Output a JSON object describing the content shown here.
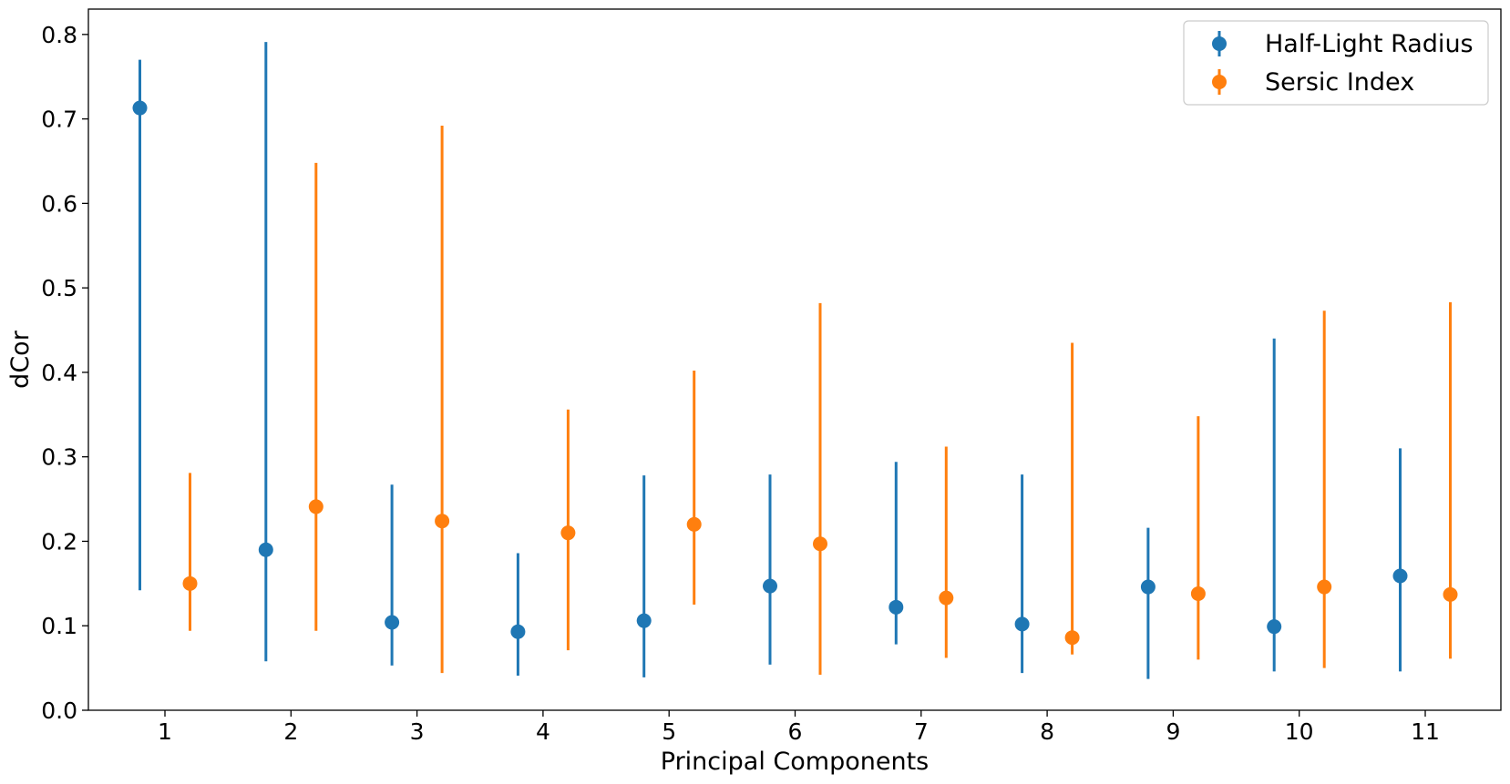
{
  "chart_data": {
    "type": "scatter",
    "title": "",
    "xlabel": "Principal Components",
    "ylabel": "dCor",
    "categories": [
      "1",
      "2",
      "3",
      "4",
      "5",
      "6",
      "7",
      "8",
      "9",
      "10",
      "11"
    ],
    "ylim": [
      0,
      0.83
    ],
    "yticks": [
      "0.0",
      "0.1",
      "0.2",
      "0.3",
      "0.4",
      "0.5",
      "0.6",
      "0.7",
      "0.8"
    ],
    "grid": false,
    "legend_position": "top-right",
    "series": [
      {
        "name": "Half-Light Radius",
        "color": "#1f77b4",
        "values": [
          0.713,
          0.19,
          0.104,
          0.093,
          0.106,
          0.147,
          0.122,
          0.102,
          0.146,
          0.099,
          0.159
        ],
        "lower": [
          0.142,
          0.058,
          0.053,
          0.041,
          0.039,
          0.054,
          0.078,
          0.044,
          0.037,
          0.046,
          0.046
        ],
        "upper": [
          0.77,
          0.791,
          0.267,
          0.186,
          0.278,
          0.279,
          0.294,
          0.279,
          0.216,
          0.44,
          0.31
        ]
      },
      {
        "name": "Sersic Index",
        "color": "#ff7f0e",
        "values": [
          0.15,
          0.241,
          0.224,
          0.21,
          0.22,
          0.197,
          0.133,
          0.086,
          0.138,
          0.146,
          0.137
        ],
        "lower": [
          0.094,
          0.094,
          0.044,
          0.071,
          0.125,
          0.042,
          0.062,
          0.066,
          0.06,
          0.05,
          0.061
        ],
        "upper": [
          0.281,
          0.648,
          0.692,
          0.356,
          0.402,
          0.482,
          0.312,
          0.435,
          0.348,
          0.473,
          0.483
        ]
      }
    ]
  }
}
